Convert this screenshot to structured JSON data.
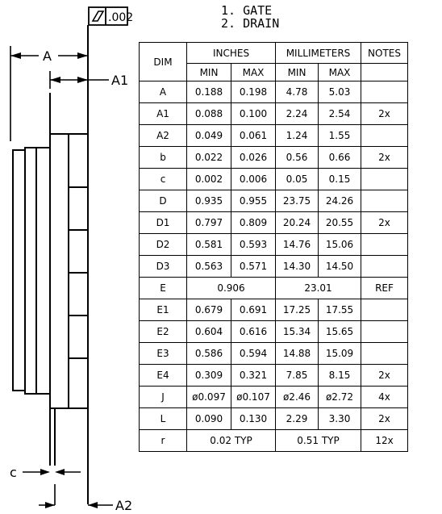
{
  "tolerance": {
    "value": ".002"
  },
  "pin_notes": [
    "1. GATE",
    "2. DRAIN"
  ],
  "dim_labels": {
    "A": "A",
    "A1": "A1",
    "A2": "A2",
    "c": "c"
  },
  "table": {
    "header_group": {
      "dim": "DIM",
      "inches": "INCHES",
      "mm": "MILLIMETERS",
      "notes": "NOTES"
    },
    "header_sub": {
      "in_min": "MIN",
      "in_max": "MAX",
      "mm_min": "MIN",
      "mm_max": "MAX"
    },
    "rows": [
      {
        "dim": "A",
        "in_min": "0.188",
        "in_max": "0.198",
        "mm_min": "4.78",
        "mm_max": "5.03",
        "notes": ""
      },
      {
        "dim": "A1",
        "in_min": "0.088",
        "in_max": "0.100",
        "mm_min": "2.24",
        "mm_max": "2.54",
        "notes": "2x"
      },
      {
        "dim": "A2",
        "in_min": "0.049",
        "in_max": "0.061",
        "mm_min": "1.24",
        "mm_max": "1.55",
        "notes": ""
      },
      {
        "dim": "b",
        "in_min": "0.022",
        "in_max": "0.026",
        "mm_min": "0.56",
        "mm_max": "0.66",
        "notes": "2x"
      },
      {
        "dim": "c",
        "in_min": "0.002",
        "in_max": "0.006",
        "mm_min": "0.05",
        "mm_max": "0.15",
        "notes": ""
      },
      {
        "dim": "D",
        "in_min": "0.935",
        "in_max": "0.955",
        "mm_min": "23.75",
        "mm_max": "24.26",
        "notes": ""
      },
      {
        "dim": "D1",
        "in_min": "0.797",
        "in_max": "0.809",
        "mm_min": "20.24",
        "mm_max": "20.55",
        "notes": "2x"
      },
      {
        "dim": "D2",
        "in_min": "0.581",
        "in_max": "0.593",
        "mm_min": "14.76",
        "mm_max": "15.06",
        "notes": ""
      },
      {
        "dim": "D3",
        "in_min": "0.563",
        "in_max": "0.571",
        "mm_min": "14.30",
        "mm_max": "14.50",
        "notes": ""
      },
      {
        "dim": "E",
        "in_merged": "0.906",
        "mm_merged": "23.01",
        "notes": "REF"
      },
      {
        "dim": "E1",
        "in_min": "0.679",
        "in_max": "0.691",
        "mm_min": "17.25",
        "mm_max": "17.55",
        "notes": ""
      },
      {
        "dim": "E2",
        "in_min": "0.604",
        "in_max": "0.616",
        "mm_min": "15.34",
        "mm_max": "15.65",
        "notes": ""
      },
      {
        "dim": "E3",
        "in_min": "0.586",
        "in_max": "0.594",
        "mm_min": "14.88",
        "mm_max": "15.09",
        "notes": ""
      },
      {
        "dim": "E4",
        "in_min": "0.309",
        "in_max": "0.321",
        "mm_min": "7.85",
        "mm_max": "8.15",
        "notes": "2x"
      },
      {
        "dim": "J",
        "in_min": "ø0.097",
        "in_max": "ø0.107",
        "mm_min": "ø2.46",
        "mm_max": "ø2.72",
        "notes": "4x"
      },
      {
        "dim": "L",
        "in_min": "0.090",
        "in_max": "0.130",
        "mm_min": "2.29",
        "mm_max": "3.30",
        "notes": "2x"
      },
      {
        "dim": "r",
        "in_merged": "0.02  TYP",
        "mm_merged": "0.51  TYP",
        "notes": "12x"
      }
    ]
  }
}
